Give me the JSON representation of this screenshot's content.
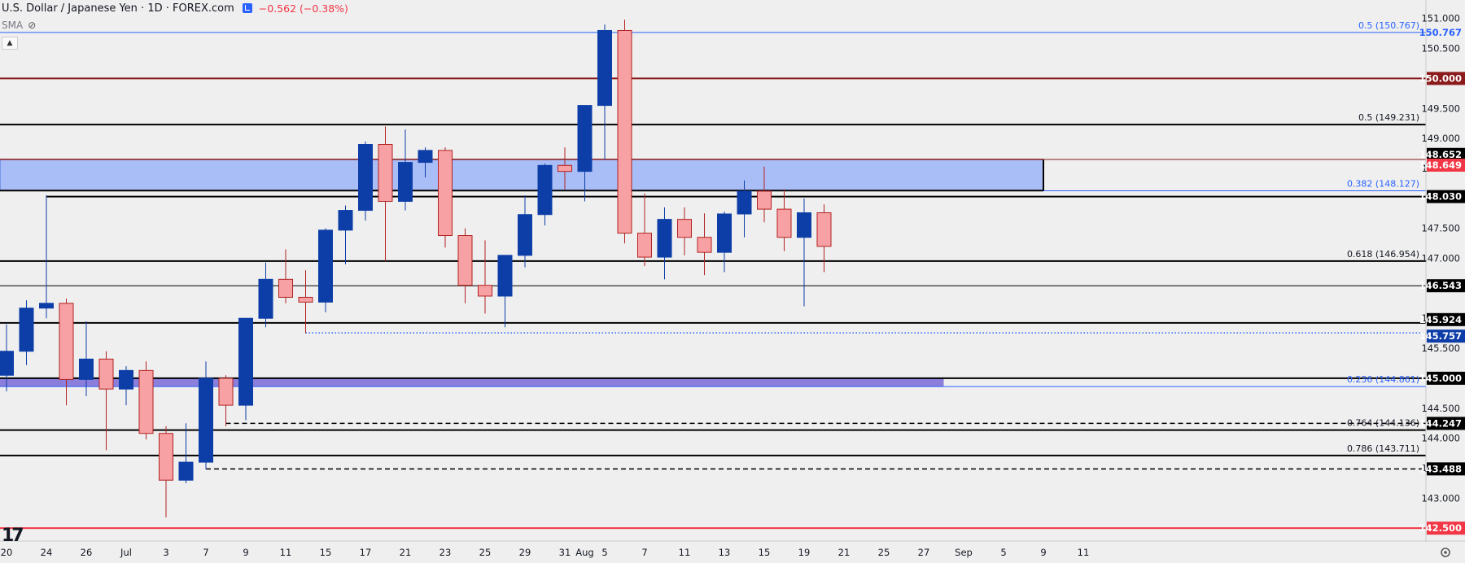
{
  "header": {
    "title": "U.S. Dollar / Japanese Yen · 1D · FOREX.com",
    "change": "−0.562 (−0.38%)",
    "indicator": "SMA"
  },
  "logo_text": "17",
  "colors": {
    "up": "#0d3ea8",
    "down": "#f7a1a4",
    "down_border": "#b22222",
    "zone_fill": "#a9bdf6",
    "zone_border": "#4a6fd6",
    "support_band": "#8b7fdb",
    "dark_red": "#8b1a1a",
    "red": "#f23645",
    "blue_label": "#2962ff",
    "black": "#000000"
  },
  "chart_data": {
    "type": "candlestick",
    "title": "U.S. Dollar / Japanese Yen · 1D · FOREX.com",
    "ylim": [
      142.38,
      151.2
    ],
    "y_ticks": [
      143.0,
      143.5,
      144.0,
      144.5,
      145.5,
      146.0,
      147.0,
      147.5,
      148.5,
      149.0,
      149.5,
      150.5,
      151.0
    ],
    "x_ticks": [
      {
        "label": "20",
        "i": 0
      },
      {
        "label": "24",
        "i": 2
      },
      {
        "label": "26",
        "i": 4
      },
      {
        "label": "Jul",
        "i": 6
      },
      {
        "label": "3",
        "i": 8
      },
      {
        "label": "7",
        "i": 10
      },
      {
        "label": "9",
        "i": 12
      },
      {
        "label": "11",
        "i": 14
      },
      {
        "label": "15",
        "i": 16
      },
      {
        "label": "17",
        "i": 18
      },
      {
        "label": "21",
        "i": 20
      },
      {
        "label": "23",
        "i": 22
      },
      {
        "label": "25",
        "i": 24
      },
      {
        "label": "29",
        "i": 26
      },
      {
        "label": "31",
        "i": 28
      },
      {
        "label": "Aug",
        "i": 29
      },
      {
        "label": "5",
        "i": 30
      },
      {
        "label": "7",
        "i": 32
      },
      {
        "label": "11",
        "i": 34
      },
      {
        "label": "13",
        "i": 36
      },
      {
        "label": "15",
        "i": 38
      },
      {
        "label": "19",
        "i": 40
      },
      {
        "label": "21",
        "i": 42
      },
      {
        "label": "25",
        "i": 44
      },
      {
        "label": "27",
        "i": 46
      },
      {
        "label": "Sep",
        "i": 48
      },
      {
        "label": "5",
        "i": 50
      },
      {
        "label": "9",
        "i": 52
      },
      {
        "label": "11",
        "i": 54
      }
    ],
    "candles": [
      {
        "o": 145.05,
        "h": 145.9,
        "l": 144.78,
        "c": 145.45
      },
      {
        "o": 145.45,
        "h": 146.3,
        "l": 145.22,
        "c": 146.17
      },
      {
        "o": 146.17,
        "h": 148.05,
        "l": 146.0,
        "c": 146.25
      },
      {
        "o": 146.25,
        "h": 146.33,
        "l": 144.55,
        "c": 144.98
      },
      {
        "o": 144.98,
        "h": 145.95,
        "l": 144.7,
        "c": 145.32
      },
      {
        "o": 145.32,
        "h": 145.45,
        "l": 143.8,
        "c": 144.82
      },
      {
        "o": 144.82,
        "h": 145.2,
        "l": 144.55,
        "c": 145.13
      },
      {
        "o": 145.13,
        "h": 145.28,
        "l": 143.98,
        "c": 144.08
      },
      {
        "o": 144.08,
        "h": 144.2,
        "l": 142.68,
        "c": 143.3
      },
      {
        "o": 143.3,
        "h": 144.25,
        "l": 143.25,
        "c": 143.6
      },
      {
        "o": 143.6,
        "h": 145.28,
        "l": 143.48,
        "c": 145.0
      },
      {
        "o": 145.0,
        "h": 145.05,
        "l": 144.2,
        "c": 144.55
      },
      {
        "o": 144.55,
        "h": 146.0,
        "l": 144.3,
        "c": 146.0
      },
      {
        "o": 146.0,
        "h": 146.93,
        "l": 145.85,
        "c": 146.65
      },
      {
        "o": 146.65,
        "h": 147.15,
        "l": 146.25,
        "c": 146.35
      },
      {
        "o": 146.35,
        "h": 146.8,
        "l": 145.75,
        "c": 146.27
      },
      {
        "o": 146.27,
        "h": 147.5,
        "l": 146.1,
        "c": 147.47
      },
      {
        "o": 147.47,
        "h": 147.88,
        "l": 146.9,
        "c": 147.8
      },
      {
        "o": 147.8,
        "h": 148.95,
        "l": 147.63,
        "c": 148.9
      },
      {
        "o": 148.9,
        "h": 149.2,
        "l": 146.95,
        "c": 147.95
      },
      {
        "o": 147.95,
        "h": 149.15,
        "l": 147.8,
        "c": 148.6
      },
      {
        "o": 148.6,
        "h": 148.85,
        "l": 148.35,
        "c": 148.8
      },
      {
        "o": 148.8,
        "h": 148.85,
        "l": 147.18,
        "c": 147.38
      },
      {
        "o": 147.38,
        "h": 147.5,
        "l": 146.25,
        "c": 146.55
      },
      {
        "o": 146.55,
        "h": 147.3,
        "l": 146.08,
        "c": 146.37
      },
      {
        "o": 146.37,
        "h": 147.05,
        "l": 145.85,
        "c": 147.05
      },
      {
        "o": 147.05,
        "h": 148.05,
        "l": 146.85,
        "c": 147.73
      },
      {
        "o": 147.73,
        "h": 148.58,
        "l": 147.55,
        "c": 148.55
      },
      {
        "o": 148.55,
        "h": 148.85,
        "l": 148.15,
        "c": 148.45
      },
      {
        "o": 148.45,
        "h": 149.55,
        "l": 147.95,
        "c": 149.55
      },
      {
        "o": 149.55,
        "h": 150.9,
        "l": 148.65,
        "c": 150.8
      },
      {
        "o": 150.8,
        "h": 150.98,
        "l": 147.25,
        "c": 147.42
      },
      {
        "o": 147.42,
        "h": 148.08,
        "l": 146.87,
        "c": 147.02
      },
      {
        "o": 147.02,
        "h": 147.85,
        "l": 146.65,
        "c": 147.65
      },
      {
        "o": 147.65,
        "h": 147.85,
        "l": 147.05,
        "c": 147.35
      },
      {
        "o": 147.35,
        "h": 147.75,
        "l": 146.72,
        "c": 147.1
      },
      {
        "o": 147.1,
        "h": 147.78,
        "l": 146.77,
        "c": 147.74
      },
      {
        "o": 147.74,
        "h": 148.3,
        "l": 147.35,
        "c": 148.12
      },
      {
        "o": 148.12,
        "h": 148.53,
        "l": 147.6,
        "c": 147.82
      },
      {
        "o": 147.82,
        "h": 148.15,
        "l": 147.12,
        "c": 147.35
      },
      {
        "o": 147.35,
        "h": 148.0,
        "l": 146.2,
        "c": 147.76
      },
      {
        "o": 147.76,
        "h": 147.9,
        "l": 146.77,
        "c": 147.2
      }
    ],
    "levels": [
      {
        "price": 150.767,
        "label": "0.5 (150.767)",
        "tag": "150.767",
        "style": "blue-thin",
        "start_i": -1
      },
      {
        "price": 150.0,
        "tag": "150.000",
        "style": "darkred",
        "start_i": -1
      },
      {
        "price": 149.231,
        "label": "0.5 (149.231)",
        "style": "black",
        "start_i": -1
      },
      {
        "price": 148.652,
        "tag": "148.652",
        "style": "none",
        "start_i": -1
      },
      {
        "price": 148.649,
        "tag": "148.649",
        "style": "darkred-thin",
        "start_i": -1
      },
      {
        "price": 148.127,
        "label": "0.382 (148.127)",
        "style": "blue-thin",
        "start_i": 52
      },
      {
        "price": 148.03,
        "tag": "148.030",
        "style": "black",
        "start_i": 2
      },
      {
        "price": 146.954,
        "label": "0.618 (146.954)",
        "style": "black",
        "start_i": -1
      },
      {
        "price": 146.543,
        "tag": "146.543",
        "style": "black-thin",
        "start_i": -1
      },
      {
        "price": 145.924,
        "tag": "145.924",
        "style": "black",
        "start_i": -1
      },
      {
        "price": 145.757,
        "tag": "145.757",
        "style": "blue-dotted",
        "start_i": 15
      },
      {
        "price": 145.0,
        "tag": "145.000",
        "style": "black",
        "start_i": -1
      },
      {
        "price": 144.861,
        "label": "0.236 (144.861)",
        "style": "blue-thin",
        "start_i": -1
      },
      {
        "price": 144.247,
        "tag": "144.247",
        "style": "black-dashed",
        "start_i": 11
      },
      {
        "price": 144.136,
        "label": "0.764 (144.136)",
        "style": "black",
        "start_i": -1
      },
      {
        "price": 143.711,
        "label": "0.786 (143.711)",
        "style": "black",
        "start_i": -1
      },
      {
        "price": 143.488,
        "tag": "143.488",
        "style": "black-dashed",
        "start_i": 10
      },
      {
        "price": 142.5,
        "tag": "142.500",
        "style": "red",
        "start_i": -1
      }
    ],
    "zones": [
      {
        "from": 148.13,
        "to": 148.65,
        "start_i": -1,
        "end_i": 52,
        "kind": "resistance"
      },
      {
        "from": 144.86,
        "to": 145.0,
        "start_i": -1,
        "end_i": 47,
        "kind": "support"
      }
    ]
  }
}
